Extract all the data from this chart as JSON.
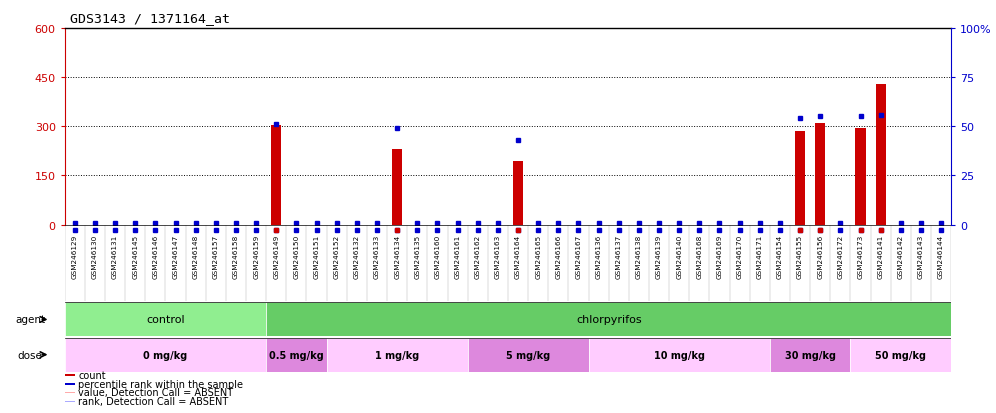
{
  "title": "GDS3143 / 1371164_at",
  "samples": [
    "GSM246129",
    "GSM246130",
    "GSM246131",
    "GSM246145",
    "GSM246146",
    "GSM246147",
    "GSM246148",
    "GSM246157",
    "GSM246158",
    "GSM246159",
    "GSM246149",
    "GSM246150",
    "GSM246151",
    "GSM246152",
    "GSM246132",
    "GSM246133",
    "GSM246134",
    "GSM246135",
    "GSM246160",
    "GSM246161",
    "GSM246162",
    "GSM246163",
    "GSM246164",
    "GSM246165",
    "GSM246166",
    "GSM246167",
    "GSM246136",
    "GSM246137",
    "GSM246138",
    "GSM246139",
    "GSM246140",
    "GSM246168",
    "GSM246169",
    "GSM246170",
    "GSM246171",
    "GSM246154",
    "GSM246155",
    "GSM246156",
    "GSM246172",
    "GSM246173",
    "GSM246141",
    "GSM246142",
    "GSM246143",
    "GSM246144"
  ],
  "count_values": [
    0,
    0,
    0,
    0,
    0,
    0,
    0,
    0,
    0,
    0,
    305,
    0,
    0,
    0,
    0,
    0,
    230,
    0,
    0,
    0,
    0,
    0,
    195,
    0,
    0,
    0,
    0,
    0,
    0,
    0,
    0,
    0,
    0,
    0,
    0,
    0,
    285,
    310,
    0,
    295,
    430,
    0,
    0,
    0
  ],
  "rank_values_pct": [
    1,
    1,
    1,
    1,
    1,
    1,
    1,
    1,
    1,
    1,
    51,
    1,
    1,
    1,
    1,
    1,
    49,
    1,
    1,
    1,
    1,
    1,
    43,
    1,
    1,
    1,
    1,
    1,
    1,
    1,
    1,
    1,
    1,
    1,
    1,
    1,
    54,
    55,
    1,
    55,
    56,
    1,
    1,
    1
  ],
  "count_absent": [
    false,
    false,
    false,
    false,
    false,
    false,
    false,
    false,
    false,
    false,
    false,
    false,
    false,
    false,
    false,
    false,
    false,
    false,
    false,
    false,
    false,
    false,
    false,
    false,
    false,
    false,
    false,
    false,
    false,
    false,
    false,
    false,
    false,
    false,
    false,
    false,
    false,
    false,
    false,
    false,
    false,
    false,
    false,
    false
  ],
  "ylim_left": [
    0,
    600
  ],
  "ylim_right": [
    0,
    100
  ],
  "yticks_left": [
    0,
    150,
    300,
    450,
    600
  ],
  "yticks_right": [
    0,
    25,
    50,
    75,
    100
  ],
  "bar_color": "#cc0000",
  "rank_color": "#0000cc",
  "absent_bar_color": "#ffaaaa",
  "absent_rank_color": "#aaaaff",
  "background_color": "#ffffff",
  "plot_bg_color": "#ffffff",
  "agent_groups": [
    {
      "label": "control",
      "start": 0,
      "end": 10,
      "color": "#90ee90"
    },
    {
      "label": "chlorpyrifos",
      "start": 10,
      "end": 44,
      "color": "#66cc66"
    }
  ],
  "dose_groups": [
    {
      "label": "0 mg/kg",
      "start": 0,
      "end": 10,
      "color": "#ffccff"
    },
    {
      "label": "0.5 mg/kg",
      "start": 10,
      "end": 13,
      "color": "#dd88dd"
    },
    {
      "label": "1 mg/kg",
      "start": 13,
      "end": 20,
      "color": "#ffccff"
    },
    {
      "label": "5 mg/kg",
      "start": 20,
      "end": 26,
      "color": "#dd88dd"
    },
    {
      "label": "10 mg/kg",
      "start": 26,
      "end": 35,
      "color": "#ffccff"
    },
    {
      "label": "30 mg/kg",
      "start": 35,
      "end": 39,
      "color": "#dd88dd"
    },
    {
      "label": "50 mg/kg",
      "start": 39,
      "end": 44,
      "color": "#ffccff"
    }
  ],
  "legend_items": [
    {
      "color": "#cc0000",
      "label": "count"
    },
    {
      "color": "#0000cc",
      "label": "percentile rank within the sample"
    },
    {
      "color": "#ffaaaa",
      "label": "value, Detection Call = ABSENT"
    },
    {
      "color": "#aaaaff",
      "label": "rank, Detection Call = ABSENT"
    }
  ],
  "grid_color": "#000000",
  "tick_color_left": "#cc0000",
  "tick_color_right": "#0000cc",
  "right_ytick_labels": [
    "0",
    "25",
    "50",
    "75",
    "100%"
  ]
}
